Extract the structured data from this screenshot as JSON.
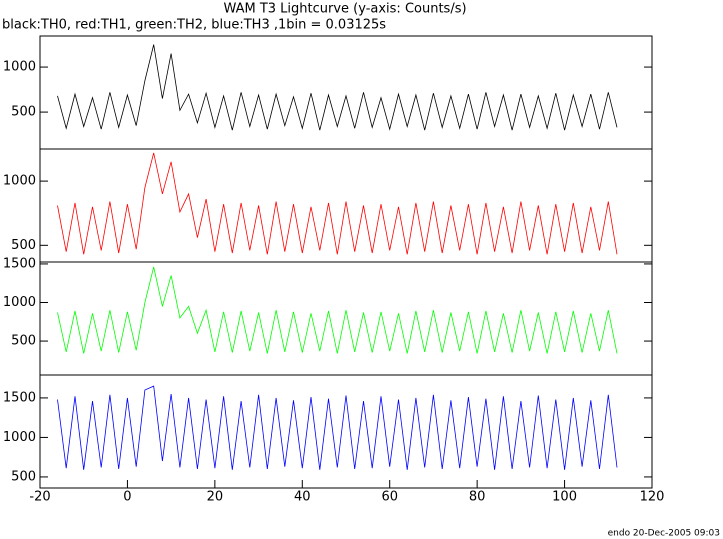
{
  "title": "WAM T3 Lightcurve (y-axis: Counts/s)",
  "subtitle": "black:TH0, red:TH1, green:TH2, blue:TH3 ,1bin = 0.03125s",
  "footer": "endo 20-Dec-2005 09:03",
  "chart_data": [
    {
      "type": "line",
      "color": "#000000",
      "xlim": [
        -20,
        120
      ],
      "ylim": [
        90,
        1345
      ],
      "yticks": [
        500,
        1000
      ],
      "x": [
        -16,
        -14,
        -12,
        -10,
        -8,
        -6,
        -4,
        -2,
        0,
        2,
        4,
        6,
        8,
        10,
        12,
        14,
        16,
        18,
        20,
        22,
        24,
        26,
        28,
        30,
        32,
        34,
        36,
        38,
        40,
        42,
        44,
        46,
        48,
        50,
        52,
        54,
        56,
        58,
        60,
        62,
        64,
        66,
        68,
        70,
        72,
        74,
        76,
        78,
        80,
        82,
        84,
        86,
        88,
        90,
        92,
        94,
        96,
        98,
        100,
        102,
        104,
        106,
        108,
        110,
        112
      ],
      "values": [
        680,
        320,
        700,
        340,
        660,
        310,
        720,
        330,
        690,
        350,
        850,
        1250,
        650,
        1150,
        520,
        700,
        380,
        710,
        330,
        680,
        300,
        720,
        340,
        690,
        310,
        700,
        350,
        670,
        320,
        710,
        300,
        690,
        340,
        680,
        320,
        720,
        330,
        660,
        310,
        700,
        340,
        690,
        300,
        710,
        330,
        680,
        320,
        700,
        310,
        720,
        340,
        690,
        300,
        700,
        330,
        680,
        320,
        710,
        300,
        690,
        340,
        700,
        310,
        720,
        330
      ]
    },
    {
      "type": "line",
      "color": "#ff0000",
      "xlim": [
        -20,
        120
      ],
      "ylim": [
        370,
        1250
      ],
      "yticks": [
        500,
        1000
      ],
      "x": [
        -16,
        -14,
        -12,
        -10,
        -8,
        -6,
        -4,
        -2,
        0,
        2,
        4,
        6,
        8,
        10,
        12,
        14,
        16,
        18,
        20,
        22,
        24,
        26,
        28,
        30,
        32,
        34,
        36,
        38,
        40,
        42,
        44,
        46,
        48,
        50,
        52,
        54,
        56,
        58,
        60,
        62,
        64,
        66,
        68,
        70,
        72,
        74,
        76,
        78,
        80,
        82,
        84,
        86,
        88,
        90,
        92,
        94,
        96,
        98,
        100,
        102,
        104,
        106,
        108,
        110,
        112
      ],
      "values": [
        810,
        450,
        830,
        430,
        800,
        460,
        840,
        440,
        820,
        470,
        950,
        1220,
        900,
        1150,
        760,
        900,
        560,
        860,
        450,
        820,
        440,
        830,
        460,
        810,
        430,
        840,
        450,
        820,
        440,
        800,
        460,
        830,
        430,
        840,
        450,
        810,
        440,
        820,
        460,
        800,
        430,
        830,
        450,
        840,
        440,
        810,
        460,
        820,
        430,
        830,
        450,
        800,
        440,
        840,
        460,
        810,
        430,
        820,
        450,
        830,
        440,
        800,
        460,
        840,
        430
      ]
    },
    {
      "type": "line",
      "color": "#00ff00",
      "xlim": [
        -20,
        120
      ],
      "ylim": [
        60,
        1525
      ],
      "yticks": [
        500,
        1000,
        1500
      ],
      "x": [
        -16,
        -14,
        -12,
        -10,
        -8,
        -6,
        -4,
        -2,
        0,
        2,
        4,
        6,
        8,
        10,
        12,
        14,
        16,
        18,
        20,
        22,
        24,
        26,
        28,
        30,
        32,
        34,
        36,
        38,
        40,
        42,
        44,
        46,
        48,
        50,
        52,
        54,
        56,
        58,
        60,
        62,
        64,
        66,
        68,
        70,
        72,
        74,
        76,
        78,
        80,
        82,
        84,
        86,
        88,
        90,
        92,
        94,
        96,
        98,
        100,
        102,
        104,
        106,
        108,
        110,
        112
      ],
      "values": [
        870,
        360,
        890,
        340,
        860,
        370,
        900,
        350,
        880,
        380,
        1000,
        1460,
        950,
        1350,
        800,
        950,
        600,
        900,
        360,
        880,
        350,
        890,
        370,
        870,
        340,
        900,
        360,
        880,
        350,
        860,
        370,
        890,
        340,
        900,
        360,
        870,
        350,
        880,
        370,
        860,
        340,
        890,
        360,
        900,
        350,
        870,
        370,
        880,
        340,
        890,
        360,
        860,
        350,
        900,
        370,
        870,
        340,
        880,
        360,
        890,
        350,
        860,
        370,
        900,
        340
      ]
    },
    {
      "type": "line",
      "color": "#0000ff",
      "xlim": [
        -20,
        120
      ],
      "ylim": [
        360,
        1790
      ],
      "yticks": [
        500,
        1000,
        1500
      ],
      "xticks": [
        -20,
        0,
        20,
        40,
        60,
        80,
        100,
        120
      ],
      "x": [
        -16,
        -14,
        -12,
        -10,
        -8,
        -6,
        -4,
        -2,
        0,
        2,
        4,
        6,
        8,
        10,
        12,
        14,
        16,
        18,
        20,
        22,
        24,
        26,
        28,
        30,
        32,
        34,
        36,
        38,
        40,
        42,
        44,
        46,
        48,
        50,
        52,
        54,
        56,
        58,
        60,
        62,
        64,
        66,
        68,
        70,
        72,
        74,
        76,
        78,
        80,
        82,
        84,
        86,
        88,
        90,
        92,
        94,
        96,
        98,
        100,
        102,
        104,
        106,
        108,
        110,
        112
      ],
      "values": [
        1480,
        610,
        1520,
        590,
        1460,
        620,
        1540,
        600,
        1500,
        630,
        1600,
        1650,
        700,
        1550,
        620,
        1500,
        600,
        1480,
        610,
        1520,
        590,
        1460,
        620,
        1540,
        600,
        1500,
        630,
        1470,
        610,
        1510,
        590,
        1490,
        620,
        1530,
        600,
        1460,
        610,
        1520,
        630,
        1480,
        590,
        1500,
        620,
        1540,
        600,
        1470,
        610,
        1510,
        630,
        1490,
        590,
        1520,
        600,
        1460,
        620,
        1530,
        610,
        1480,
        590,
        1500,
        630,
        1470,
        600,
        1540,
        620
      ]
    }
  ]
}
